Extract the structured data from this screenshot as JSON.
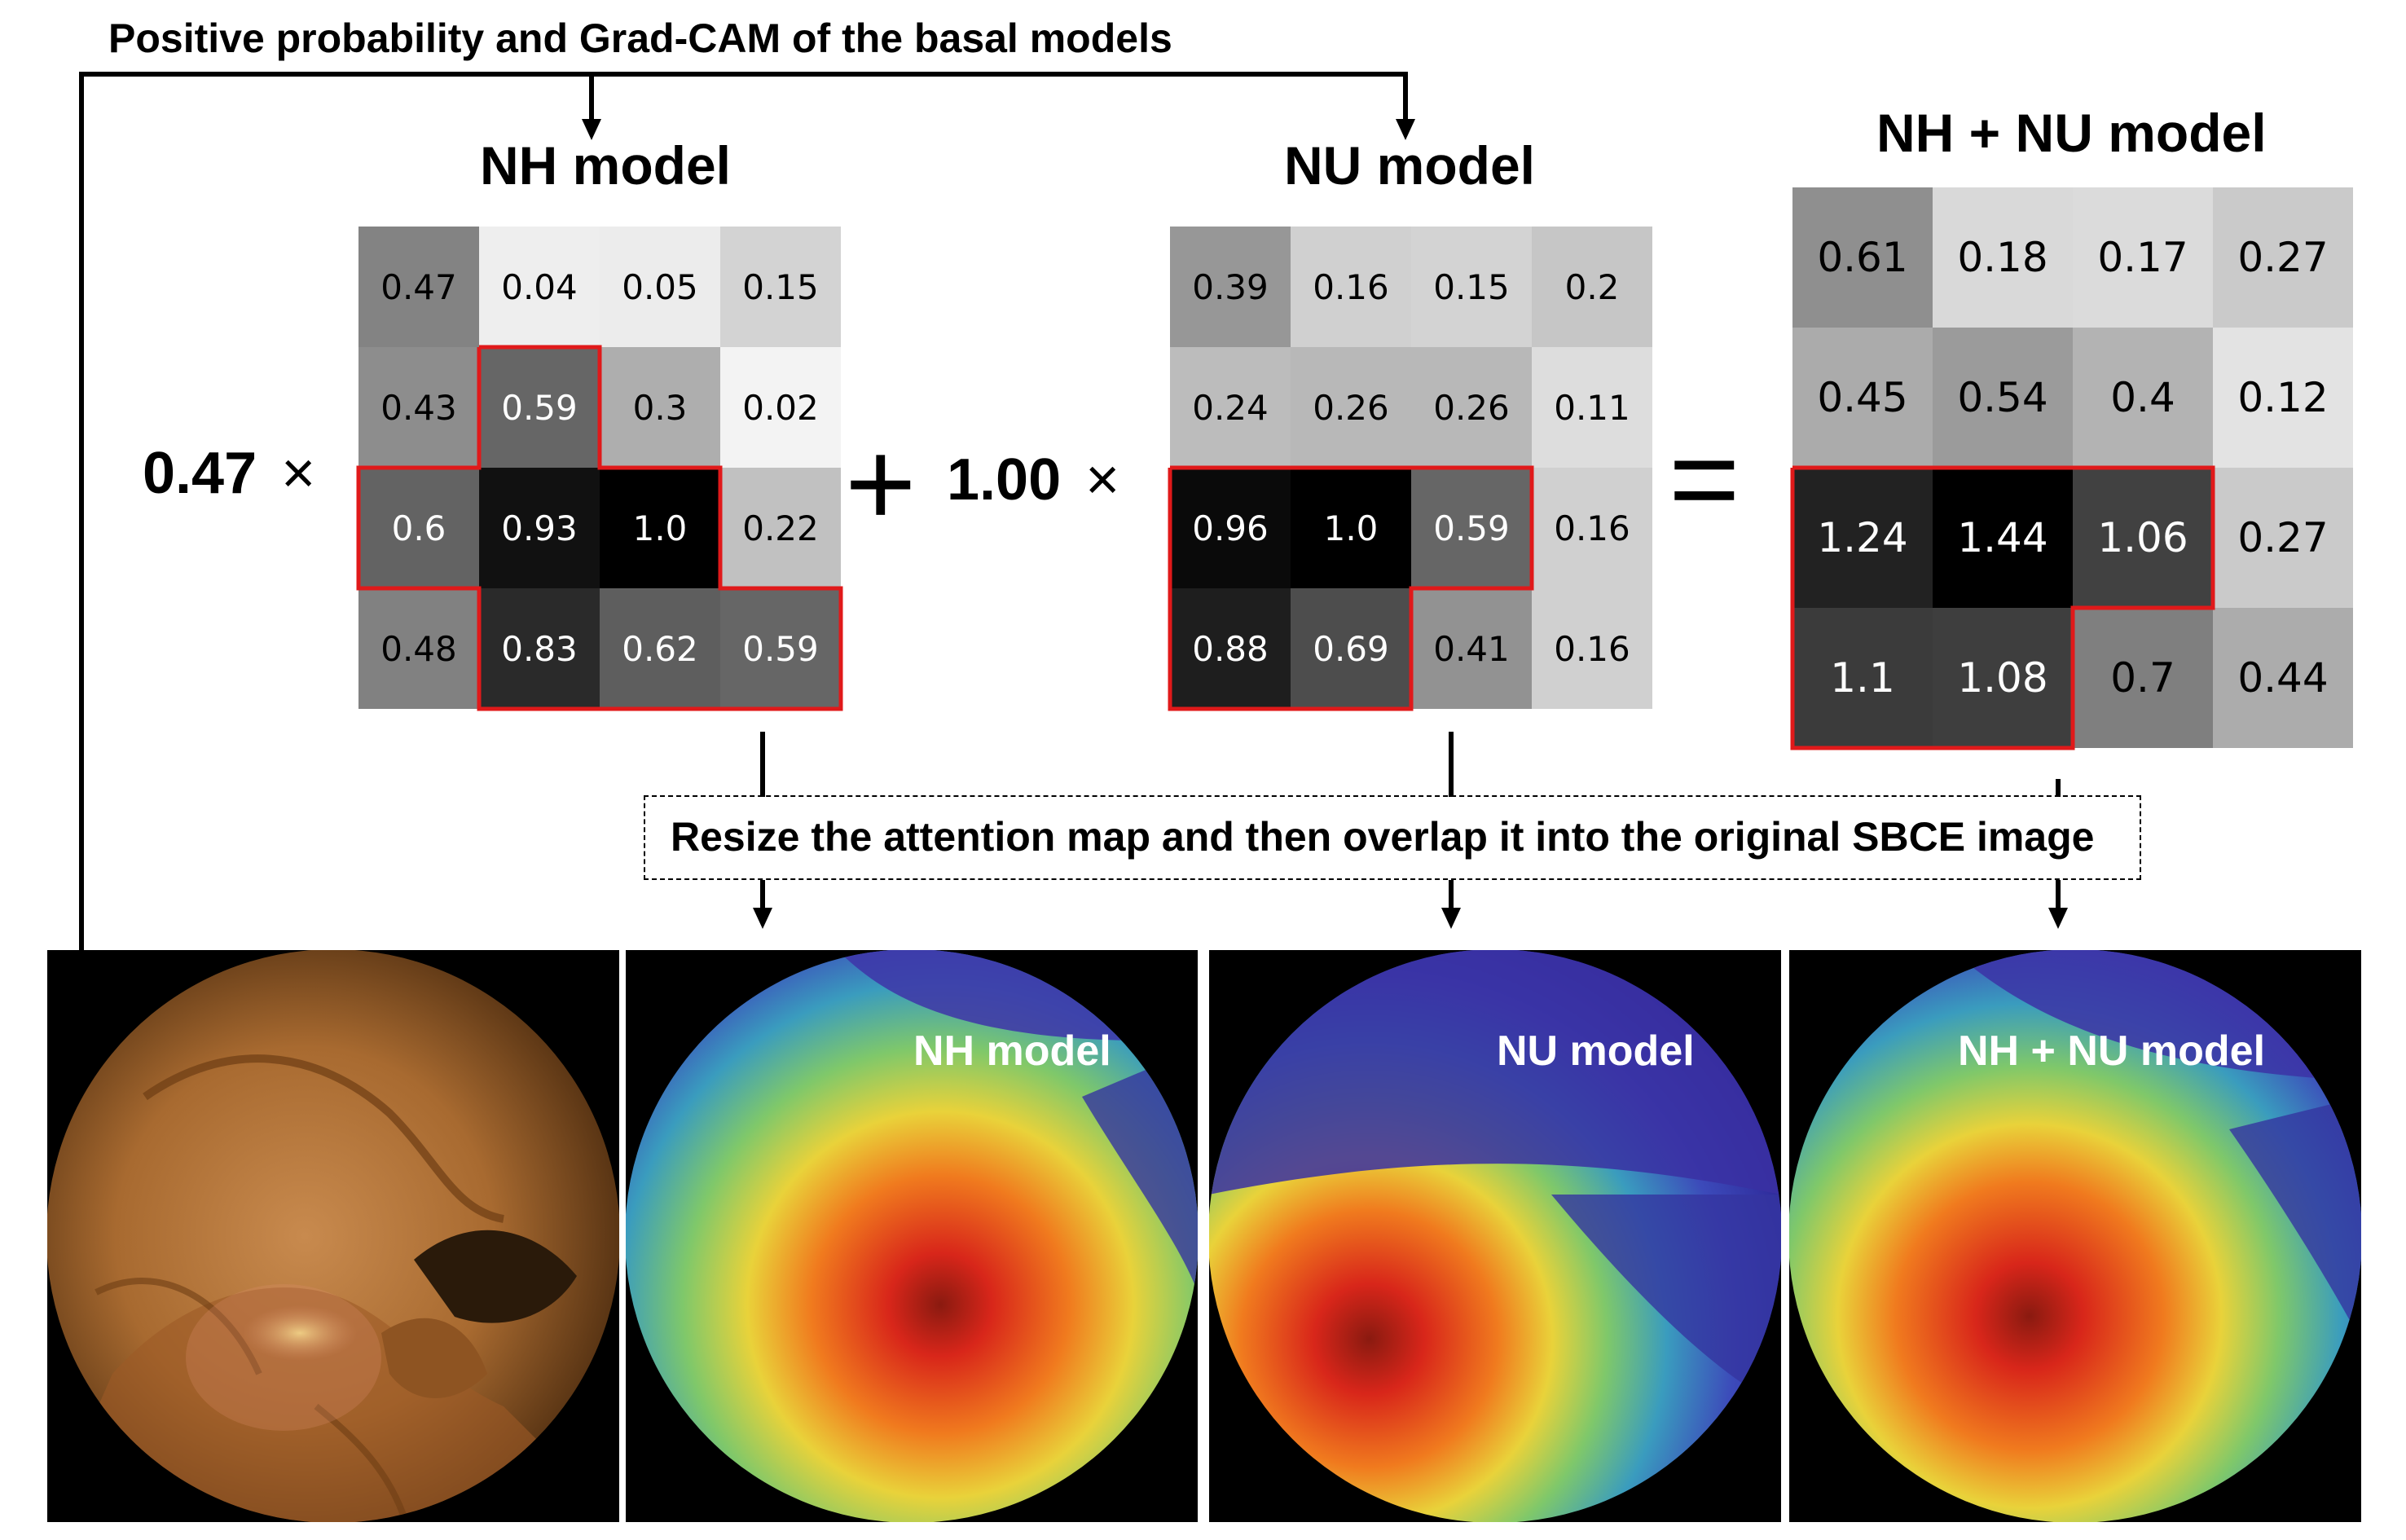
{
  "header": {
    "title": "Positive probability and Grad-CAM of the basal models"
  },
  "matrices": {
    "nh": {
      "title": "NH model",
      "weight": "0.47",
      "values": [
        [
          "0.47",
          "0.04",
          "0.05",
          "0.15"
        ],
        [
          "0.43",
          "0.59",
          "0.3",
          "0.02"
        ],
        [
          "0.6",
          "0.93",
          "1.0",
          "0.22"
        ],
        [
          "0.48",
          "0.83",
          "0.62",
          "0.59"
        ]
      ]
    },
    "nu": {
      "title": "NU model",
      "weight": "1.00",
      "values": [
        [
          "0.39",
          "0.16",
          "0.15",
          "0.2"
        ],
        [
          "0.24",
          "0.26",
          "0.26",
          "0.11"
        ],
        [
          "0.96",
          "1.0",
          "0.59",
          "0.16"
        ],
        [
          "0.88",
          "0.69",
          "0.41",
          "0.16"
        ]
      ]
    },
    "combined": {
      "title": "NH + NU model",
      "values": [
        [
          "0.61",
          "0.18",
          "0.17",
          "0.27"
        ],
        [
          "0.45",
          "0.54",
          "0.4",
          "0.12"
        ],
        [
          "1.24",
          "1.44",
          "1.06",
          "0.27"
        ],
        [
          "1.1",
          "1.08",
          "0.7",
          "0.44"
        ]
      ]
    }
  },
  "operators": {
    "times": "×",
    "plus": "+",
    "equals": "="
  },
  "resize_note": "Resize the attention map and then overlap it into the original SBCE image",
  "images": {
    "original": "",
    "nh_overlay_label": "NH model",
    "nu_overlay_label": "NU model",
    "combined_overlay_label": "NH + NU model"
  },
  "colors": {
    "highlight_border": "#e0191a",
    "heat_hot": "#c81e12",
    "heat_cold": "#3a2a9a"
  }
}
